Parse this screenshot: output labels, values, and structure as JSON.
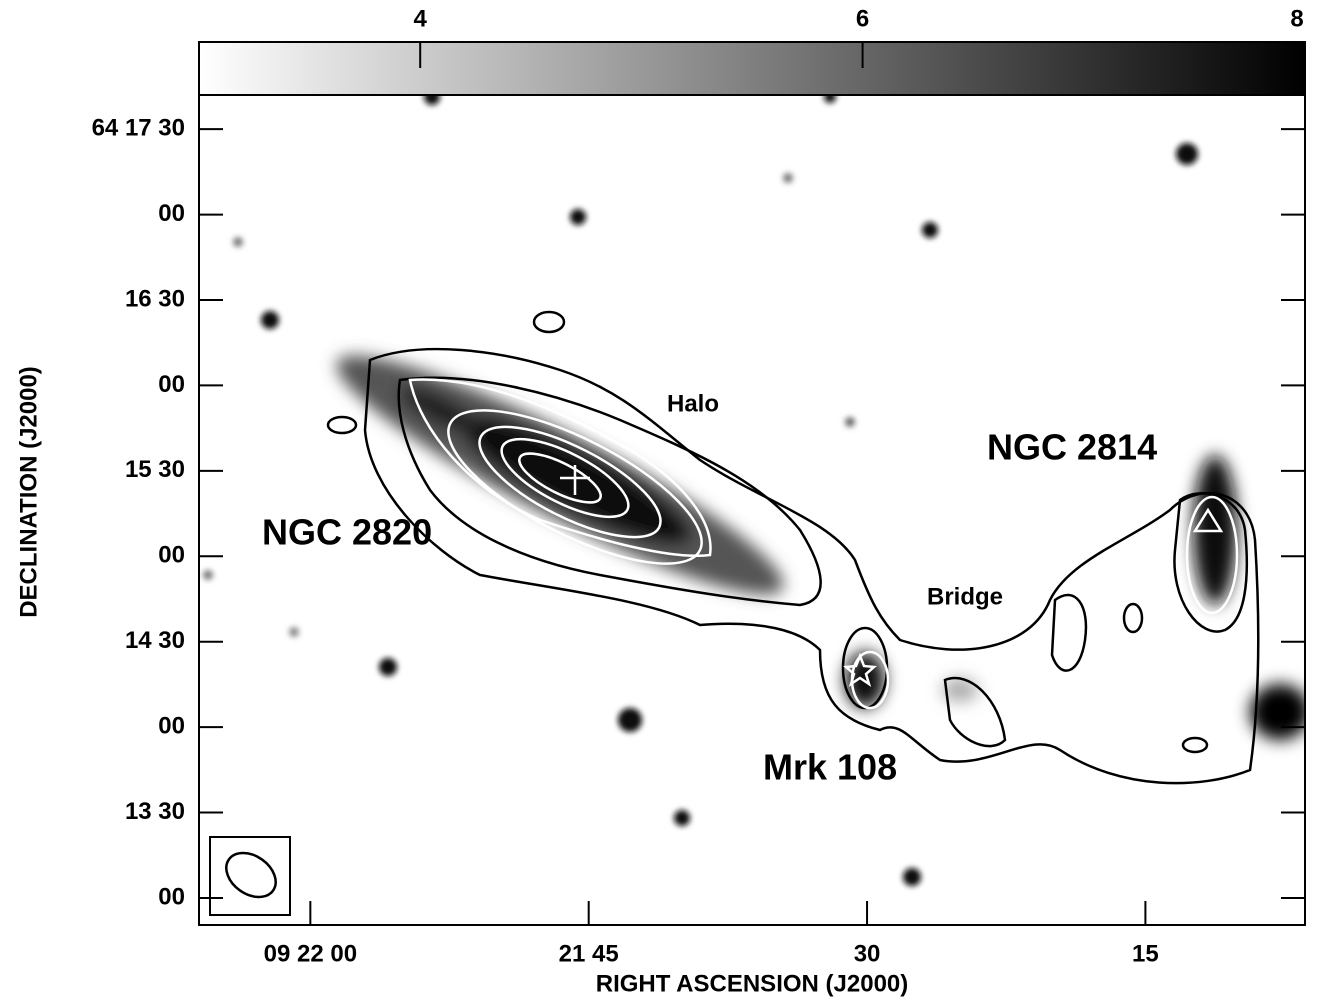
{
  "chart_data": {
    "type": "contour",
    "x_label": "RIGHT ASCENSION (J2000)",
    "y_label": "DECLINATION (J2000)",
    "xlim": [
      33726,
      33666.4
    ],
    "ylim": [
      231170.5,
      231462
    ],
    "xticks": [
      {
        "value": 33720,
        "label": "09 22 00"
      },
      {
        "value": 33705,
        "label": "21 45"
      },
      {
        "value": 33690,
        "label": "30"
      },
      {
        "value": 33675,
        "label": "15"
      }
    ],
    "yticks": [
      {
        "value": 231450,
        "label": "64 17 30"
      },
      {
        "value": 231420,
        "label": "00"
      },
      {
        "value": 231390,
        "label": "16 30"
      },
      {
        "value": 231360,
        "label": "00"
      },
      {
        "value": 231330,
        "label": "15 30"
      },
      {
        "value": 231300,
        "label": "00"
      },
      {
        "value": 231270,
        "label": "14 30"
      },
      {
        "value": 231240,
        "label": "00"
      },
      {
        "value": 231210,
        "label": "13 30"
      },
      {
        "value": 231180,
        "label": "00"
      }
    ],
    "colorbar": {
      "lim": [
        3,
        8
      ],
      "ticks": [
        4,
        6,
        8
      ]
    },
    "annotations": [
      "NGC 2820",
      "NGC 2814",
      "Mrk 108",
      "Halo",
      "Bridge"
    ]
  }
}
